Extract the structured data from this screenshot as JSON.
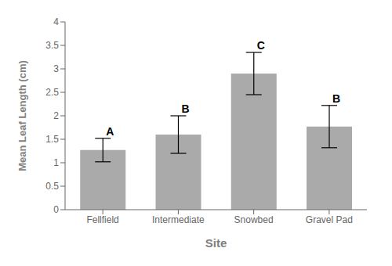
{
  "chart_data": {
    "type": "bar",
    "categories": [
      "Fellfield",
      "Intermediate",
      "Snowbed",
      "Gravel Pad"
    ],
    "values": [
      1.27,
      1.6,
      2.9,
      1.77
    ],
    "errors": [
      0.25,
      0.4,
      0.45,
      0.45
    ],
    "letters": [
      "A",
      "B",
      "C",
      "B"
    ],
    "color": "#aaaaaa",
    "xlabel": "Site",
    "ylabel": "Mean Leaf Length (cm)",
    "ylim": [
      0,
      4
    ],
    "yticks": [
      0,
      0.5,
      1,
      1.5,
      2,
      2.5,
      3,
      3.5,
      4
    ],
    "grid": false
  }
}
